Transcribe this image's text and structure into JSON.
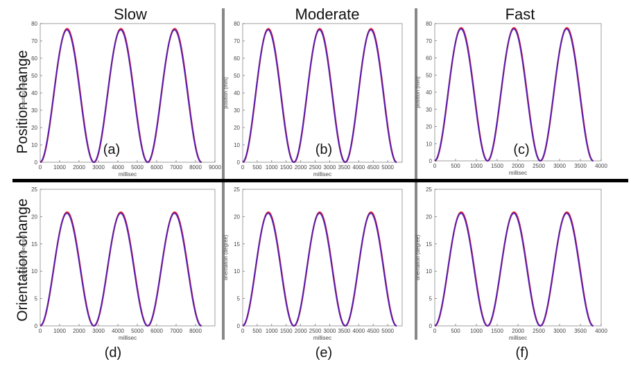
{
  "column_titles": [
    "Slow",
    "Moderate",
    "Fast"
  ],
  "row_titles": [
    "Position change",
    "Orientation change"
  ],
  "colors": {
    "measured": "#e3192b",
    "estimated": "#4b1fb8",
    "separator_vertical": "#888888",
    "separator_horizontal": "#000000"
  },
  "chart_data": [
    {
      "panel_label": "(a)",
      "type": "line",
      "xlabel": "millisec",
      "ylabel": "position (mm)",
      "xlim": [
        0,
        9000
      ],
      "ylim": [
        0,
        80
      ],
      "xticks": [
        0,
        1000,
        2000,
        3000,
        4000,
        5000,
        6000,
        7000,
        8000,
        9000
      ],
      "yticks": [
        0,
        10,
        20,
        30,
        40,
        50,
        60,
        70,
        80
      ],
      "series": [
        {
          "period": 2770,
          "amplitude": 77,
          "cycles": 3,
          "x_end": 8310
        },
        {
          "period": 2770,
          "amplitude": 77,
          "cycles": 3,
          "x_end": 8310
        }
      ]
    },
    {
      "panel_label": "(b)",
      "type": "line",
      "xlabel": "millisec",
      "ylabel": "position (mm)",
      "xlim": [
        0,
        5500
      ],
      "ylim": [
        0,
        80
      ],
      "xticks": [
        0,
        500,
        1000,
        1500,
        2000,
        2500,
        3000,
        3500,
        4000,
        4500,
        5000
      ],
      "yticks": [
        0,
        10,
        20,
        30,
        40,
        50,
        60,
        70,
        80
      ],
      "series": [
        {
          "period": 1770,
          "amplitude": 77,
          "cycles": 3,
          "x_end": 5310
        },
        {
          "period": 1770,
          "amplitude": 77,
          "cycles": 3,
          "x_end": 5310
        }
      ]
    },
    {
      "panel_label": "(c)",
      "type": "line",
      "xlabel": "millisec",
      "ylabel": "position (mm)",
      "xlim": [
        0,
        4000
      ],
      "ylim": [
        0,
        80
      ],
      "xticks": [
        0,
        500,
        1000,
        1500,
        2000,
        2500,
        3000,
        3500,
        4000
      ],
      "yticks": [
        0,
        10,
        20,
        30,
        40,
        50,
        60,
        70,
        80
      ],
      "series": [
        {
          "period": 1270,
          "amplitude": 77.5,
          "cycles": 3,
          "x_end": 3810
        },
        {
          "period": 1270,
          "amplitude": 77.5,
          "cycles": 3,
          "x_end": 3810
        }
      ]
    },
    {
      "panel_label": "(d)",
      "type": "line",
      "xlabel": "millisec",
      "ylabel": "orientation (degree)",
      "xlim": [
        0,
        9000
      ],
      "ylim": [
        0,
        25
      ],
      "xticks": [
        0,
        1000,
        2000,
        3000,
        4000,
        5000,
        6000,
        7000,
        8000
      ],
      "yticks": [
        0,
        5,
        10,
        15,
        20,
        25
      ],
      "series": [
        {
          "period": 2770,
          "amplitude": 20.8,
          "cycles": 3,
          "x_end": 8310
        },
        {
          "period": 2770,
          "amplitude": 20.8,
          "cycles": 3,
          "x_end": 8310
        }
      ]
    },
    {
      "panel_label": "(e)",
      "type": "line",
      "xlabel": "millisec",
      "ylabel": "orientation (degree)",
      "xlim": [
        0,
        5500
      ],
      "ylim": [
        0,
        25
      ],
      "xticks": [
        0,
        500,
        1000,
        1500,
        2000,
        2500,
        3000,
        3500,
        4000,
        4500,
        5000
      ],
      "yticks": [
        0,
        5,
        10,
        15,
        20,
        25
      ],
      "series": [
        {
          "period": 1770,
          "amplitude": 20.8,
          "cycles": 3,
          "x_end": 5310
        },
        {
          "period": 1770,
          "amplitude": 20.8,
          "cycles": 3,
          "x_end": 5310
        }
      ]
    },
    {
      "panel_label": "(f)",
      "type": "line",
      "xlabel": "millisec",
      "ylabel": "orientation (degree)",
      "xlim": [
        0,
        4000
      ],
      "ylim": [
        0,
        25
      ],
      "xticks": [
        0,
        500,
        1000,
        1500,
        2000,
        2500,
        3000,
        3500,
        4000
      ],
      "yticks": [
        0,
        5,
        10,
        15,
        20,
        25
      ],
      "series": [
        {
          "period": 1270,
          "amplitude": 20.8,
          "cycles": 3,
          "x_end": 3810
        },
        {
          "period": 1270,
          "amplitude": 20.8,
          "cycles": 3,
          "x_end": 3810
        }
      ]
    }
  ]
}
